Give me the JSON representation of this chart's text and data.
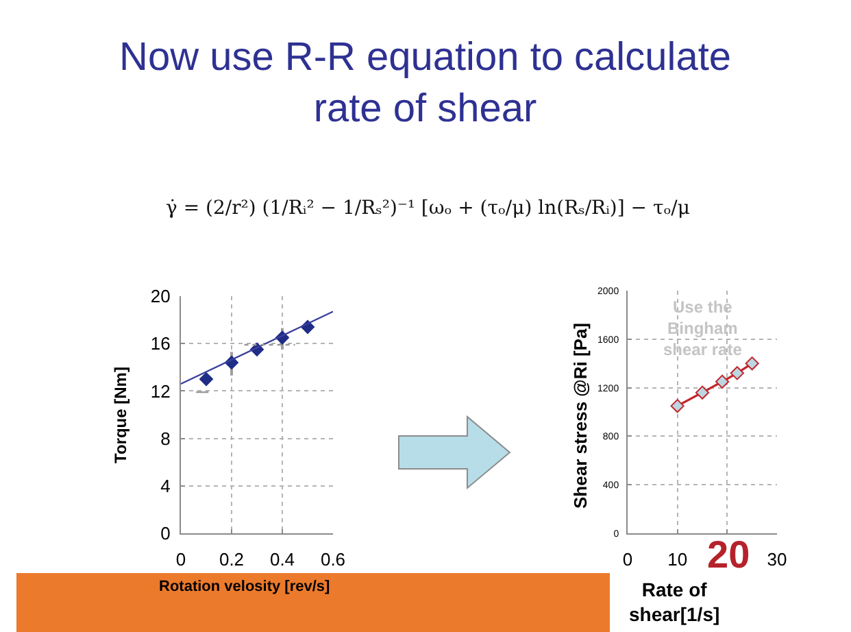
{
  "chart_data": [
    {
      "type": "scatter",
      "title": "Now use R-R equation to calculate rate of shear",
      "subtitle": "γ̇ = (2/r²) (1/Rᵢ² − 1/Rₛ²)⁻¹ [ωₒ + (τₒ/μ) ln(Rₛ/Rᵢ)] − τₒ/μ",
      "xlabel": "Rotation velosity [rev/s]",
      "ylabel": "Torque [Nm]",
      "xlim": [
        0,
        0.6
      ],
      "xticks": [
        0,
        0.2,
        0.4,
        0.6
      ],
      "ylim": [
        0,
        20
      ],
      "yticks": [
        0,
        4,
        8,
        12,
        16,
        20
      ],
      "grid": true,
      "marker": "diamond",
      "series": [
        {
          "type": "scatter",
          "color": "#1f2d87",
          "x": [
            0.1,
            0.2,
            0.3,
            0.4,
            0.5
          ],
          "values": [
            13.0,
            14.4,
            15.5,
            16.5,
            17.4
          ],
          "errors": [
            null,
            [
              13.3,
              15.3
            ],
            null,
            [
              15.5,
              17.3
            ],
            null
          ]
        },
        {
          "type": "line",
          "color": "#3b3f9b",
          "x": [
            0,
            0.6
          ],
          "values": [
            12.6,
            18.7
          ],
          "marker": "none"
        },
        {
          "type": "line",
          "color": "#9a9a9a",
          "x": [
            0.06,
            0.15
          ],
          "values": [
            11.9,
            11.9
          ],
          "marker": "none",
          "line_style": "dashed"
        },
        {
          "type": "line",
          "color": "#9a9a9a",
          "x": [
            0.25,
            0.45
          ],
          "values": [
            15.9,
            15.9
          ],
          "marker": "none",
          "line_style": "dotted"
        }
      ]
    },
    {
      "type": "line",
      "xlabel": "Rate of shear[1/s]",
      "ylabel": "Shear stress @Ri [Pa]",
      "annotations": [
        "Use the Bingham shear rate",
        "20"
      ],
      "x": [
        10,
        15,
        19,
        22,
        25
      ],
      "xlim": [
        0,
        30
      ],
      "xticks": [
        0,
        10,
        {
          "value": 20,
          "label": null
        },
        30
      ],
      "ylim": [
        0,
        2000
      ],
      "yticks": [
        0,
        400,
        800,
        1200,
        1600,
        2000
      ],
      "grid": true,
      "marker": "diamond",
      "series": [
        {
          "color": "#c0282d",
          "values": [
            1050,
            1160,
            1250,
            1320,
            1400
          ]
        }
      ]
    }
  ]
}
